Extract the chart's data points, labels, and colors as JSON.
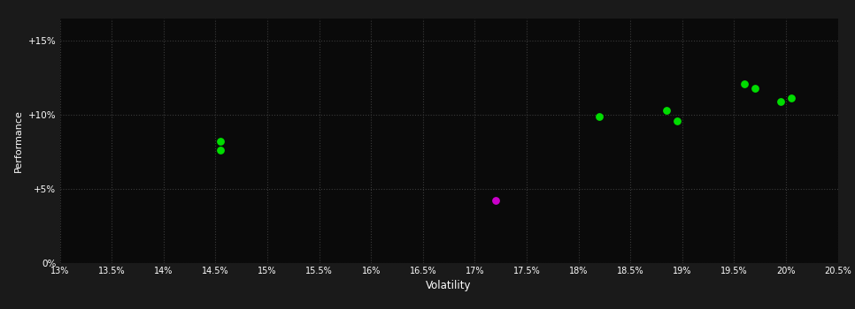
{
  "background_color": "#1a1a1a",
  "plot_bg_color": "#0a0a0a",
  "grid_color": "#3a3a3a",
  "text_color": "#ffffff",
  "xlabel": "Volatility",
  "ylabel": "Performance",
  "xlim": [
    0.13,
    0.205
  ],
  "ylim": [
    0.0,
    0.165
  ],
  "xticks": [
    0.13,
    0.135,
    0.14,
    0.145,
    0.15,
    0.155,
    0.16,
    0.165,
    0.17,
    0.175,
    0.18,
    0.185,
    0.19,
    0.195,
    0.2,
    0.205
  ],
  "yticks": [
    0.0,
    0.05,
    0.1,
    0.15
  ],
  "ytick_labels": [
    "0%",
    "+5%",
    "+10%",
    "+15%"
  ],
  "xtick_labels": [
    "13%",
    "13.5%",
    "14%",
    "14.5%",
    "15%",
    "15.5%",
    "16%",
    "16.5%",
    "17%",
    "17.5%",
    "18%",
    "18.5%",
    "19%",
    "19.5%",
    "20%",
    "20.5%"
  ],
  "green_points": [
    [
      0.1455,
      0.082
    ],
    [
      0.1455,
      0.076
    ],
    [
      0.182,
      0.099
    ],
    [
      0.1885,
      0.103
    ],
    [
      0.1895,
      0.096
    ],
    [
      0.196,
      0.121
    ],
    [
      0.197,
      0.118
    ],
    [
      0.1995,
      0.109
    ],
    [
      0.2005,
      0.111
    ]
  ],
  "magenta_points": [
    [
      0.172,
      0.042
    ]
  ],
  "green_color": "#00dd00",
  "magenta_color": "#cc00cc",
  "point_size": 28
}
